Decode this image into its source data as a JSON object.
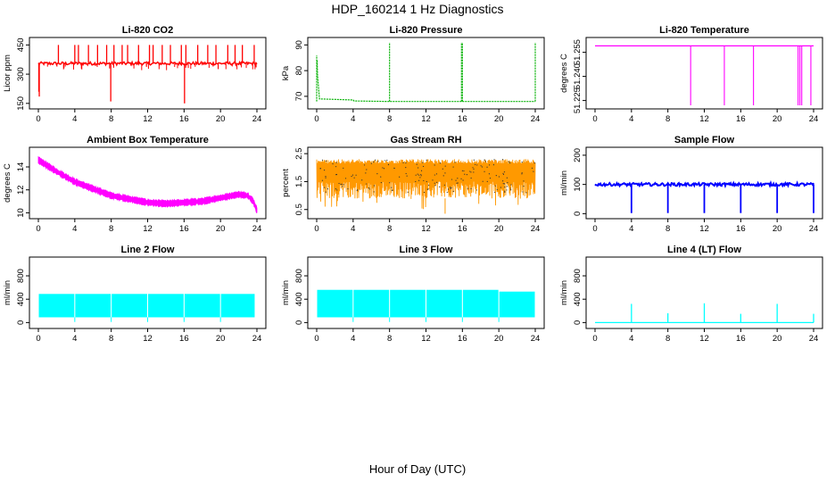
{
  "title": "HDP_160214  1 Hz Diagnostics",
  "xlabel": "Hour of Day (UTC)",
  "chart_data": [
    {
      "type": "line",
      "title": "Li-820 CO2",
      "ylabel": "Licor ppm",
      "color": "#ff0000",
      "xlim": [
        0,
        24
      ],
      "ylim": [
        140,
        470
      ],
      "xticks": [
        "0",
        "4",
        "8",
        "12",
        "16",
        "20",
        "24"
      ],
      "yticks": [
        "150",
        "300",
        "450"
      ],
      "baseline": 355,
      "noise": 8,
      "spikes": [
        [
          0.05,
          210
        ],
        [
          0.1,
          185
        ],
        [
          2.2,
          450
        ],
        [
          4.0,
          450
        ],
        [
          4.4,
          450
        ],
        [
          5.5,
          450
        ],
        [
          6.5,
          450
        ],
        [
          7.5,
          450
        ],
        [
          7.95,
          160
        ],
        [
          8.3,
          450
        ],
        [
          9.2,
          450
        ],
        [
          9.8,
          450
        ],
        [
          11.0,
          450
        ],
        [
          12.2,
          450
        ],
        [
          12.6,
          450
        ],
        [
          13.6,
          450
        ],
        [
          14.5,
          450
        ],
        [
          15.7,
          450
        ],
        [
          16.05,
          150
        ],
        [
          16.2,
          450
        ],
        [
          17.5,
          450
        ],
        [
          18.6,
          450
        ],
        [
          19.5,
          450
        ],
        [
          20.8,
          450
        ],
        [
          21.6,
          450
        ],
        [
          22.4,
          450
        ],
        [
          23.7,
          450
        ],
        [
          23.9,
          335
        ]
      ]
    },
    {
      "type": "line",
      "title": "Li-820 Pressure",
      "ylabel": "kPa",
      "color": "#00b000",
      "xlim": [
        0,
        24
      ],
      "ylim": [
        66.5,
        91.5
      ],
      "xticks": [
        "0",
        "4",
        "8",
        "12",
        "16",
        "20",
        "24"
      ],
      "yticks": [
        "70",
        "80",
        "90"
      ],
      "segments": [
        [
          0.05,
          84
        ],
        [
          0.1,
          78
        ],
        [
          0.3,
          69
        ],
        [
          4.0,
          68.6
        ],
        [
          4.1,
          68.2
        ],
        [
          8.0,
          68.0
        ],
        [
          12.0,
          68.0
        ],
        [
          16.0,
          68.0
        ],
        [
          20.0,
          68.0
        ],
        [
          24.0,
          68.0
        ]
      ],
      "spikes": [
        [
          0.0,
          86
        ],
        [
          8.0,
          91
        ],
        [
          15.9,
          91
        ],
        [
          16.0,
          91
        ],
        [
          24.0,
          91
        ]
      ]
    },
    {
      "type": "line",
      "title": "Li-820 Temperature",
      "ylabel": "degrees C",
      "color": "#ff00ff",
      "xlim": [
        0,
        24
      ],
      "ylim": [
        51.222,
        51.262
      ],
      "xticks": [
        "0",
        "4",
        "8",
        "12",
        "16",
        "20",
        "24"
      ],
      "yticks": [
        "51.225",
        "51.240",
        "51.255"
      ],
      "baseline": 51.259,
      "drops": [
        10.5,
        14.2,
        17.4,
        22.3,
        22.5,
        22.7,
        23.7
      ],
      "drop_to": 51.222
    },
    {
      "type": "line",
      "title": "Ambient Box Temperature",
      "ylabel": "degrees C",
      "color": "#ff00ff",
      "xlim": [
        0,
        24
      ],
      "ylim": [
        9.8,
        15.4
      ],
      "xticks": [
        "0",
        "4",
        "8",
        "12",
        "16",
        "20",
        "24"
      ],
      "yticks": [
        "10",
        "12",
        "14"
      ],
      "x": [
        0,
        1,
        2,
        4,
        6,
        8,
        10,
        12,
        14,
        16,
        18,
        20,
        22,
        23,
        23.6,
        24
      ],
      "y": [
        14.6,
        14.1,
        13.6,
        12.7,
        12.1,
        11.5,
        11.2,
        10.9,
        10.8,
        10.9,
        11.0,
        11.3,
        11.6,
        11.5,
        11.0,
        10.2
      ],
      "band": 0.45
    },
    {
      "type": "line",
      "title": "Gas Stream RH",
      "ylabel": "percent",
      "color": "#ff9900",
      "xlim": [
        0,
        24
      ],
      "ylim": [
        0.3,
        2.6
      ],
      "xticks": [
        "0",
        "4",
        "8",
        "12",
        "16",
        "20",
        "24"
      ],
      "yticks": [
        "0.5",
        "1.5",
        "2.5"
      ],
      "upper": 2.3,
      "lower": 0.9,
      "minimum": 0.35,
      "dot_color": "#333333"
    },
    {
      "type": "line",
      "title": "Sample Flow",
      "ylabel": "ml/min",
      "color": "#0000ff",
      "xlim": [
        0,
        24
      ],
      "ylim": [
        -5,
        215
      ],
      "xticks": [
        "0",
        "4",
        "8",
        "12",
        "16",
        "20",
        "24"
      ],
      "yticks": [
        "0",
        "100",
        "200"
      ],
      "baseline": 100,
      "drops": [
        4,
        8,
        12,
        16,
        20,
        24
      ],
      "drop_to": 2
    },
    {
      "type": "area",
      "title": "Line 2 Flow",
      "ylabel": "ml/min",
      "color": "#00ffff",
      "xlim": [
        0,
        24
      ],
      "ylim": [
        -40,
        1060
      ],
      "xticks": [
        "0",
        "4",
        "8",
        "12",
        "16",
        "20",
        "24"
      ],
      "yticks": [
        "0",
        "400",
        "800"
      ],
      "low": 90,
      "high": 490,
      "gaps": [
        4,
        8,
        12,
        16,
        20
      ],
      "end": 23.8
    },
    {
      "type": "area",
      "title": "Line 3 Flow",
      "ylabel": "ml/min",
      "color": "#00ffff",
      "xlim": [
        0,
        24
      ],
      "ylim": [
        -40,
        1060
      ],
      "xticks": [
        "0",
        "4",
        "8",
        "12",
        "16",
        "20",
        "24"
      ],
      "yticks": [
        "0",
        "400",
        "800"
      ],
      "low": 90,
      "high": 560,
      "high_late": 530,
      "gaps": [
        4,
        8,
        12,
        16,
        20
      ],
      "end": 24
    },
    {
      "type": "line",
      "title": "Line 4 (LT) Flow",
      "ylabel": "ml/min",
      "color": "#00ffff",
      "xlim": [
        0,
        24
      ],
      "ylim": [
        -40,
        1060
      ],
      "xticks": [
        "0",
        "4",
        "8",
        "12",
        "16",
        "20",
        "24"
      ],
      "yticks": [
        "0",
        "400",
        "800"
      ],
      "baseline": 0,
      "spikes": [
        [
          4,
          320
        ],
        [
          8,
          160
        ],
        [
          12,
          330
        ],
        [
          16,
          150
        ],
        [
          20,
          320
        ],
        [
          24,
          150
        ]
      ]
    }
  ]
}
